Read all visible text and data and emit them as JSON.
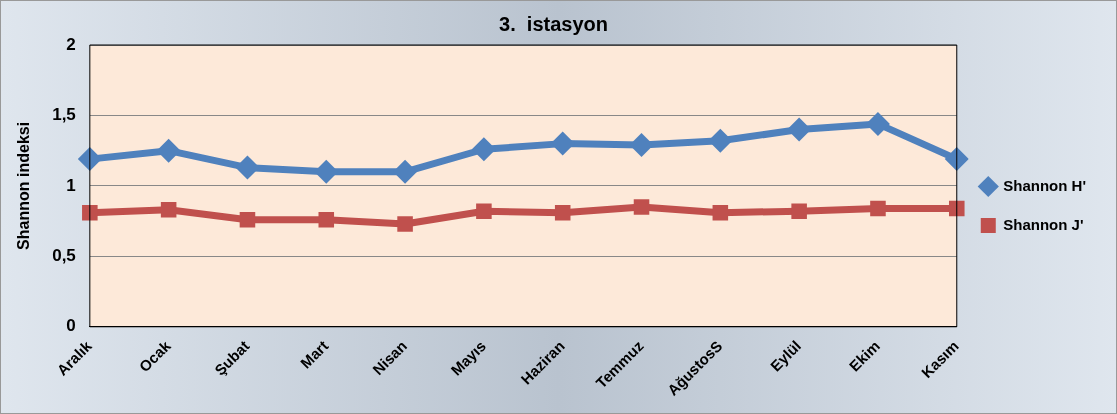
{
  "chart_data": {
    "type": "line",
    "title": "3.  istasyon",
    "ylabel": "Shannon indeksi",
    "categories": [
      "Aralık",
      "Ocak",
      "Şubat",
      "Mart",
      "Nisan",
      "Mayıs",
      "Haziran",
      "Temmuz",
      "AğustosS",
      "Eylül",
      "Ekim",
      "Kasım"
    ],
    "series": [
      {
        "name": "Shannon H'",
        "color": "#4f81bd",
        "marker": "diamond",
        "values": [
          1.19,
          1.25,
          1.13,
          1.1,
          1.1,
          1.26,
          1.3,
          1.29,
          1.32,
          1.4,
          1.44,
          1.19
        ]
      },
      {
        "name": "Shannon J'",
        "color": "#c0504d",
        "marker": "square",
        "values": [
          0.81,
          0.83,
          0.76,
          0.76,
          0.73,
          0.82,
          0.81,
          0.85,
          0.81,
          0.82,
          0.84,
          0.84
        ]
      }
    ],
    "ylim": [
      0,
      2
    ],
    "yticks": [
      {
        "value": 0,
        "label": "0"
      },
      {
        "value": 0.5,
        "label": "0,5"
      },
      {
        "value": 1,
        "label": "1"
      },
      {
        "value": 1.5,
        "label": "1,5"
      },
      {
        "value": 2,
        "label": "2"
      }
    ],
    "grid": "y",
    "legend": "right"
  }
}
